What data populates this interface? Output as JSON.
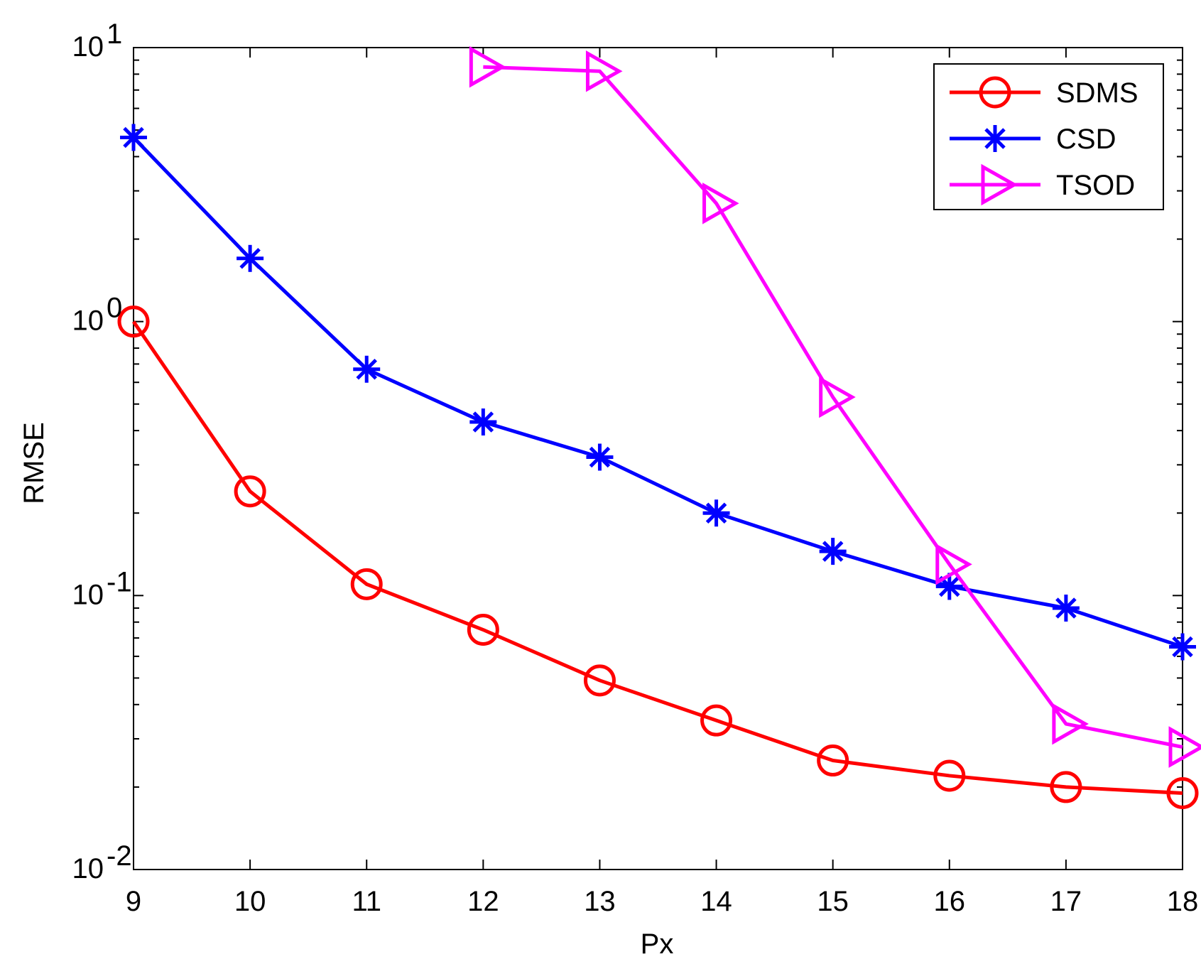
{
  "chart_data": {
    "type": "line",
    "x": [
      9,
      10,
      11,
      12,
      13,
      14,
      15,
      16,
      17,
      18
    ],
    "xlabel": "Px",
    "ylabel": "RMSE",
    "xlim": [
      9,
      18
    ],
    "ylim": [
      0.01,
      10
    ],
    "yscale": "log",
    "grid": false,
    "legend_position": "top-right",
    "x_tick_labels": [
      "9",
      "10",
      "11",
      "12",
      "13",
      "14",
      "15",
      "16",
      "17",
      "18"
    ],
    "y_tick_labels": [
      {
        "base": "10",
        "exp": "-2",
        "value": 0.01
      },
      {
        "base": "10",
        "exp": "-1",
        "value": 0.1
      },
      {
        "base": "10",
        "exp": "0",
        "value": 1
      },
      {
        "base": "10",
        "exp": "1",
        "value": 10
      }
    ],
    "series": [
      {
        "name": "SDMS",
        "color": "#ff0000",
        "marker": "circle",
        "x": [
          9,
          10,
          11,
          12,
          13,
          14,
          15,
          16,
          17,
          18
        ],
        "values": [
          1.0,
          0.24,
          0.11,
          0.075,
          0.049,
          0.035,
          0.025,
          0.022,
          0.02,
          0.019
        ]
      },
      {
        "name": "CSD",
        "color": "#0000ff",
        "marker": "asterisk",
        "x": [
          9,
          10,
          11,
          12,
          13,
          14,
          15,
          16,
          17,
          18
        ],
        "values": [
          4.7,
          1.7,
          0.67,
          0.43,
          0.32,
          0.2,
          0.145,
          0.108,
          0.09,
          0.065
        ]
      },
      {
        "name": "TSOD",
        "color": "#ff00ff",
        "marker": "triangle-right",
        "x": [
          12,
          13,
          14,
          15,
          16,
          17,
          18
        ],
        "values": [
          8.5,
          8.2,
          2.7,
          0.53,
          0.13,
          0.034,
          0.028
        ]
      }
    ]
  }
}
